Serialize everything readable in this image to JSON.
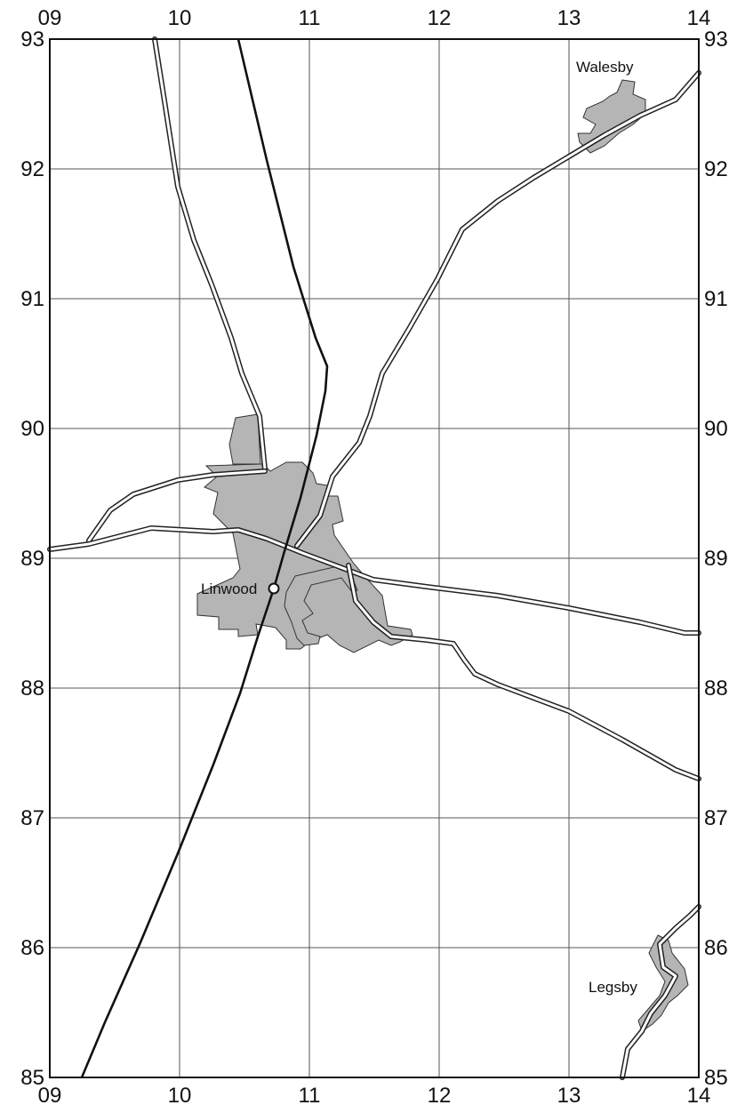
{
  "map": {
    "grid": {
      "eastings": [
        "09",
        "10",
        "11",
        "12",
        "13",
        "14"
      ],
      "northings": [
        "93",
        "92",
        "91",
        "90",
        "89",
        "88",
        "87",
        "86",
        "85"
      ]
    },
    "places": [
      {
        "name": "Walesby"
      },
      {
        "name": "Linwood"
      },
      {
        "name": "Legsby"
      }
    ],
    "colors": {
      "built_up_area": "#b5b5b5",
      "road_casing": "#222222",
      "road_fill": "#ffffff",
      "track_line": "#111111",
      "grid_line": "#555555"
    }
  }
}
